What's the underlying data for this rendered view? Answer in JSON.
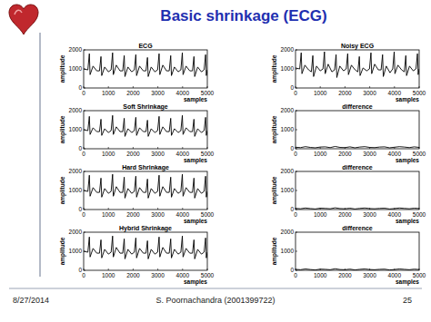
{
  "page": {
    "title": "Basic shrinkage (ECG)",
    "footer": {
      "date": "8/27/2014",
      "author": "S. Poornachandra (2001399722)",
      "page_number": 25
    }
  },
  "chart_data": [
    {
      "type": "line",
      "title": "ECG",
      "x_label": "samples",
      "y_label": "amplitude",
      "color": "#000000",
      "xlim": [
        0,
        5000
      ],
      "ylim": [
        0,
        2000
      ],
      "xticks": [
        0,
        1000,
        2000,
        3000,
        4000,
        5000
      ],
      "yticks": [
        0,
        1000,
        2000
      ],
      "x": [
        0,
        170,
        230,
        260,
        380,
        530,
        640,
        700,
        730,
        850,
        1000,
        1110,
        1170,
        1200,
        1320,
        1470,
        1580,
        1640,
        1670,
        1790,
        1940,
        2050,
        2110,
        2140,
        2260,
        2410,
        2520,
        2580,
        2610,
        2730,
        2880,
        2990,
        3050,
        3080,
        3200,
        3350,
        3460,
        3520,
        3550,
        3670,
        3820,
        3930,
        3990,
        4020,
        4140,
        4290,
        4400,
        4460,
        4490,
        4610,
        4760,
        4870,
        4930,
        4960,
        5000
      ],
      "values": [
        1000,
        950,
        1800,
        700,
        1150,
        900,
        900,
        1650,
        650,
        1100,
        850,
        950,
        1850,
        700,
        1200,
        900,
        900,
        1700,
        600,
        1100,
        850,
        950,
        1750,
        650,
        1150,
        900,
        900,
        1600,
        600,
        1100,
        850,
        950,
        1800,
        700,
        1200,
        900,
        900,
        1700,
        650,
        1100,
        850,
        950,
        1850,
        700,
        1150,
        900,
        900,
        1650,
        600,
        1100,
        850,
        950,
        1750,
        650,
        950
      ]
    },
    {
      "type": "line",
      "title": "Noisy ECG",
      "x_label": "samples",
      "y_label": "amplitude",
      "color": "#000000",
      "xlim": [
        0,
        5000
      ],
      "ylim": [
        0,
        2000
      ],
      "xticks": [
        0,
        1000,
        2000,
        3000,
        4000,
        5000
      ],
      "yticks": [
        0,
        1000,
        2000
      ],
      "x": [
        0,
        170,
        230,
        260,
        380,
        530,
        640,
        700,
        730,
        850,
        1000,
        1110,
        1170,
        1200,
        1320,
        1470,
        1580,
        1640,
        1670,
        1790,
        1940,
        2050,
        2110,
        2140,
        2260,
        2410,
        2520,
        2580,
        2610,
        2730,
        2880,
        2990,
        3050,
        3080,
        3200,
        3350,
        3460,
        3520,
        3550,
        3670,
        3820,
        3930,
        3990,
        4020,
        4140,
        4290,
        4400,
        4460,
        4490,
        4610,
        4760,
        4870,
        4930,
        4960,
        5000
      ],
      "values": [
        1050,
        1000,
        1850,
        750,
        1200,
        950,
        850,
        1700,
        600,
        1150,
        900,
        1000,
        1900,
        750,
        1250,
        850,
        950,
        1750,
        550,
        1150,
        900,
        1000,
        1800,
        700,
        1200,
        950,
        850,
        1650,
        650,
        1050,
        900,
        1000,
        1850,
        750,
        1250,
        950,
        950,
        1750,
        600,
        1150,
        800,
        1000,
        1900,
        750,
        1200,
        950,
        850,
        1700,
        650,
        1150,
        900,
        1000,
        1800,
        700,
        1000
      ]
    },
    {
      "type": "line",
      "title": "Soft Shrinkage",
      "x_label": "samples",
      "y_label": "amplitude",
      "color": "#000000",
      "xlim": [
        0,
        5000
      ],
      "ylim": [
        0,
        2000
      ],
      "xticks": [
        0,
        1000,
        2000,
        3000,
        4000,
        5000
      ],
      "yticks": [
        0,
        1000,
        2000
      ],
      "x": [
        0,
        170,
        230,
        260,
        380,
        530,
        640,
        700,
        730,
        850,
        1000,
        1110,
        1170,
        1200,
        1320,
        1470,
        1580,
        1640,
        1670,
        1790,
        1940,
        2050,
        2110,
        2140,
        2260,
        2410,
        2520,
        2580,
        2610,
        2730,
        2880,
        2990,
        3050,
        3080,
        3200,
        3350,
        3460,
        3520,
        3550,
        3670,
        3820,
        3930,
        3990,
        4020,
        4140,
        4290,
        4400,
        4460,
        4490,
        4610,
        4760,
        4870,
        4930,
        4960,
        5000
      ],
      "values": [
        1000,
        950,
        1700,
        750,
        1100,
        900,
        900,
        1550,
        700,
        1050,
        850,
        950,
        1750,
        750,
        1150,
        900,
        900,
        1600,
        650,
        1050,
        850,
        950,
        1650,
        700,
        1100,
        900,
        900,
        1500,
        650,
        1050,
        850,
        950,
        1700,
        750,
        1150,
        900,
        900,
        1600,
        700,
        1050,
        850,
        950,
        1750,
        750,
        1100,
        900,
        900,
        1550,
        650,
        1050,
        850,
        950,
        1650,
        700,
        950
      ]
    },
    {
      "type": "line",
      "title": "difference",
      "x_label": "samples",
      "y_label": "amplitude",
      "color": "#000000",
      "xlim": [
        0,
        5000
      ],
      "ylim": [
        0,
        2000
      ],
      "xticks": [
        0,
        1000,
        2000,
        3000,
        4000,
        5000
      ],
      "yticks": [
        0,
        1000,
        2000
      ],
      "x": [
        0,
        200,
        400,
        600,
        800,
        1000,
        1200,
        1400,
        1600,
        1800,
        2000,
        2200,
        2400,
        2600,
        2800,
        3000,
        3200,
        3400,
        3600,
        3800,
        4000,
        4200,
        4400,
        4600,
        4800,
        5000
      ],
      "values": [
        80,
        60,
        110,
        70,
        50,
        90,
        100,
        60,
        120,
        70,
        60,
        100,
        50,
        90,
        110,
        70,
        60,
        90,
        100,
        50,
        80,
        110,
        90,
        60,
        100,
        70
      ]
    },
    {
      "type": "line",
      "title": "Hard Shrinkage",
      "x_label": "samples",
      "y_label": "amplitude",
      "color": "#000000",
      "xlim": [
        0,
        5000
      ],
      "ylim": [
        0,
        2000
      ],
      "xticks": [
        0,
        1000,
        2000,
        3000,
        4000,
        5000
      ],
      "yticks": [
        0,
        1000,
        2000
      ],
      "x": [
        0,
        170,
        230,
        260,
        380,
        530,
        640,
        700,
        730,
        850,
        1000,
        1110,
        1170,
        1200,
        1320,
        1470,
        1580,
        1640,
        1670,
        1790,
        1940,
        2050,
        2110,
        2140,
        2260,
        2410,
        2520,
        2580,
        2610,
        2730,
        2880,
        2990,
        3050,
        3080,
        3200,
        3350,
        3460,
        3520,
        3550,
        3670,
        3820,
        3930,
        3990,
        4020,
        4140,
        4290,
        4400,
        4460,
        4490,
        4610,
        4760,
        4870,
        4930,
        4960,
        5000
      ],
      "values": [
        1000,
        950,
        1800,
        700,
        1150,
        900,
        900,
        1650,
        650,
        1100,
        850,
        950,
        1850,
        700,
        1200,
        900,
        900,
        1700,
        600,
        1100,
        850,
        950,
        1750,
        650,
        1150,
        900,
        900,
        1600,
        600,
        1100,
        850,
        950,
        1800,
        700,
        1200,
        900,
        900,
        1700,
        650,
        1100,
        850,
        950,
        1850,
        700,
        1150,
        900,
        900,
        1650,
        600,
        1100,
        850,
        950,
        1750,
        650,
        950
      ]
    },
    {
      "type": "line",
      "title": "difference",
      "x_label": "samples",
      "y_label": "amplitude",
      "color": "#000000",
      "xlim": [
        0,
        5000
      ],
      "ylim": [
        0,
        2000
      ],
      "xticks": [
        0,
        1000,
        2000,
        3000,
        4000,
        5000
      ],
      "yticks": [
        0,
        1000,
        2000
      ],
      "x": [
        0,
        200,
        400,
        600,
        800,
        1000,
        1200,
        1400,
        1600,
        1800,
        2000,
        2200,
        2400,
        2600,
        2800,
        3000,
        3200,
        3400,
        3600,
        3800,
        4000,
        4200,
        4400,
        4600,
        4800,
        5000
      ],
      "values": [
        60,
        40,
        80,
        50,
        30,
        70,
        60,
        40,
        90,
        50,
        40,
        70,
        30,
        60,
        80,
        50,
        40,
        60,
        70,
        30,
        50,
        80,
        60,
        40,
        70,
        50
      ]
    },
    {
      "type": "line",
      "title": "Hybrid Shrinkage",
      "x_label": "samples",
      "y_label": "amplitude",
      "color": "#000000",
      "xlim": [
        0,
        5000
      ],
      "ylim": [
        0,
        2000
      ],
      "xticks": [
        0,
        1000,
        2000,
        3000,
        4000,
        5000
      ],
      "yticks": [
        0,
        1000,
        2000
      ],
      "x": [
        0,
        170,
        230,
        260,
        380,
        530,
        640,
        700,
        730,
        850,
        1000,
        1110,
        1170,
        1200,
        1320,
        1470,
        1580,
        1640,
        1670,
        1790,
        1940,
        2050,
        2110,
        2140,
        2260,
        2410,
        2520,
        2580,
        2610,
        2730,
        2880,
        2990,
        3050,
        3080,
        3200,
        3350,
        3460,
        3520,
        3550,
        3670,
        3820,
        3930,
        3990,
        4020,
        4140,
        4290,
        4400,
        4460,
        4490,
        4610,
        4760,
        4870,
        4930,
        4960,
        5000
      ],
      "values": [
        1000,
        950,
        1750,
        700,
        1150,
        900,
        900,
        1600,
        650,
        1100,
        850,
        950,
        1800,
        700,
        1200,
        900,
        900,
        1650,
        600,
        1100,
        850,
        950,
        1700,
        650,
        1150,
        900,
        900,
        1550,
        600,
        1100,
        850,
        950,
        1750,
        700,
        1200,
        900,
        900,
        1650,
        650,
        1100,
        850,
        950,
        1800,
        700,
        1150,
        900,
        900,
        1600,
        600,
        1100,
        850,
        950,
        1700,
        650,
        950
      ]
    },
    {
      "type": "line",
      "title": "difference",
      "x_label": "samples",
      "y_label": "amplitude",
      "color": "#000000",
      "xlim": [
        0,
        5000
      ],
      "ylim": [
        0,
        2000
      ],
      "xticks": [
        0,
        1000,
        2000,
        3000,
        4000,
        5000
      ],
      "yticks": [
        0,
        1000,
        2000
      ],
      "x": [
        0,
        200,
        400,
        600,
        800,
        1000,
        1200,
        1400,
        1600,
        1800,
        2000,
        2200,
        2400,
        2600,
        2800,
        3000,
        3200,
        3400,
        3600,
        3800,
        4000,
        4200,
        4400,
        4600,
        4800,
        5000
      ],
      "values": [
        50,
        30,
        70,
        40,
        20,
        60,
        50,
        30,
        80,
        40,
        30,
        60,
        20,
        50,
        70,
        40,
        30,
        50,
        60,
        20,
        40,
        70,
        50,
        30,
        60,
        40
      ]
    }
  ]
}
